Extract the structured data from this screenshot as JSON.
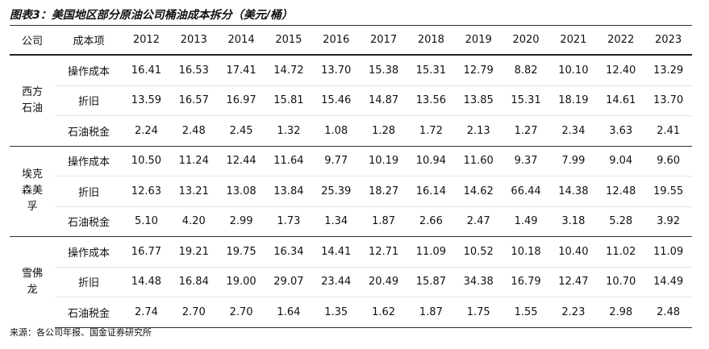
{
  "title": "图表3：美国地区部分原油公司桶油成本拆分（美元/桶）",
  "header": [
    "公司",
    "成本项",
    "2012",
    "2013",
    "2014",
    "2015",
    "2016",
    "2017",
    "2018",
    "2019",
    "2020",
    "2021",
    "2022",
    "2023"
  ],
  "groups": [
    {
      "company": "西方石油",
      "rows": [
        {
          "item": "操作成本",
          "values": [
            "16.41",
            "16.53",
            "17.41",
            "14.72",
            "13.70",
            "15.38",
            "15.31",
            "12.79",
            "8.82",
            "10.10",
            "12.40",
            "13.29"
          ]
        },
        {
          "item": "折旧",
          "values": [
            "13.59",
            "16.57",
            "16.97",
            "15.81",
            "15.46",
            "14.87",
            "13.56",
            "13.85",
            "15.31",
            "18.19",
            "14.61",
            "13.70"
          ]
        },
        {
          "item": "石油税金",
          "values": [
            "2.24",
            "2.48",
            "2.45",
            "1.32",
            "1.08",
            "1.28",
            "1.72",
            "2.13",
            "1.27",
            "2.34",
            "3.63",
            "2.41"
          ]
        }
      ]
    },
    {
      "company": "埃克森美孚",
      "rows": [
        {
          "item": "操作成本",
          "values": [
            "10.50",
            "11.24",
            "12.44",
            "11.64",
            "9.77",
            "10.19",
            "10.94",
            "11.60",
            "9.37",
            "7.99",
            "9.04",
            "9.60"
          ]
        },
        {
          "item": "折旧",
          "values": [
            "12.63",
            "13.21",
            "13.08",
            "13.84",
            "25.39",
            "18.27",
            "16.14",
            "14.62",
            "66.44",
            "14.38",
            "12.48",
            "19.55"
          ]
        },
        {
          "item": "石油税金",
          "values": [
            "5.10",
            "4.20",
            "2.99",
            "1.73",
            "1.34",
            "1.87",
            "2.66",
            "2.47",
            "1.49",
            "3.18",
            "5.28",
            "3.92"
          ]
        }
      ]
    },
    {
      "company": "雪佛龙",
      "rows": [
        {
          "item": "操作成本",
          "values": [
            "16.77",
            "19.21",
            "19.75",
            "16.34",
            "14.41",
            "12.71",
            "11.09",
            "10.52",
            "10.18",
            "10.40",
            "11.02",
            "11.09"
          ]
        },
        {
          "item": "折旧",
          "values": [
            "14.48",
            "16.84",
            "19.00",
            "29.07",
            "23.44",
            "20.49",
            "15.87",
            "34.38",
            "16.79",
            "12.47",
            "10.70",
            "14.49"
          ]
        },
        {
          "item": "石油税金",
          "values": [
            "2.74",
            "2.70",
            "2.70",
            "1.64",
            "1.35",
            "1.62",
            "1.87",
            "1.75",
            "1.55",
            "2.23",
            "2.98",
            "2.48"
          ]
        }
      ]
    }
  ],
  "source": "来源：各公司年报、国金证券研究所"
}
